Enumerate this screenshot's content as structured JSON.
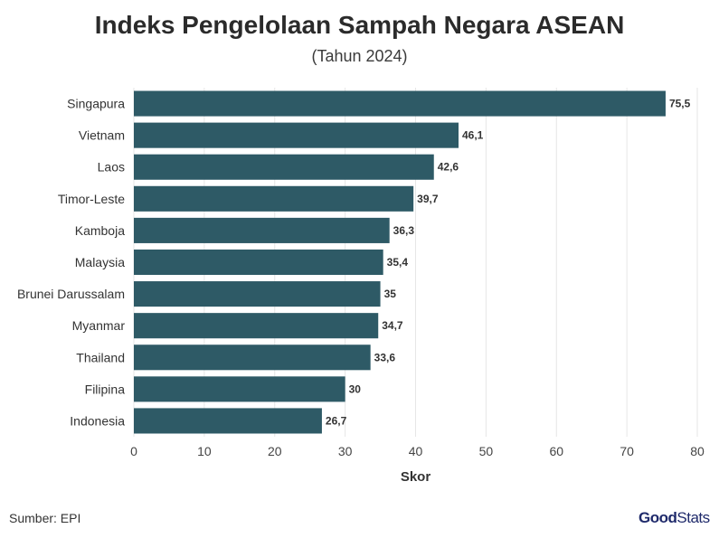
{
  "chart_data": {
    "type": "bar",
    "orientation": "horizontal",
    "title": "Indeks Pengelolaan Sampah Negara ASEAN",
    "subtitle": "(Tahun 2024)",
    "xlabel": "Skor",
    "ylabel": "",
    "xlim": [
      0,
      80
    ],
    "xticks": [
      0,
      10,
      20,
      30,
      40,
      50,
      60,
      70,
      80
    ],
    "grid": true,
    "categories": [
      "Singapura",
      "Vietnam",
      "Laos",
      "Timor-Leste",
      "Kamboja",
      "Malaysia",
      "Brunei Darussalam",
      "Myanmar",
      "Thailand",
      "Filipina",
      "Indonesia"
    ],
    "values": [
      75.5,
      46.1,
      42.6,
      39.7,
      36.3,
      35.4,
      35,
      34.7,
      33.6,
      30,
      26.7
    ],
    "value_labels": [
      "75,5",
      "46,1",
      "42,6",
      "39,7",
      "36,3",
      "35,4",
      "35",
      "34,7",
      "33,6",
      "30",
      "26,7"
    ],
    "bar_color": "#2e5a66"
  },
  "footer": {
    "source": "Sumber: EPI",
    "logo_good": "Good",
    "logo_stats": "Stats"
  }
}
